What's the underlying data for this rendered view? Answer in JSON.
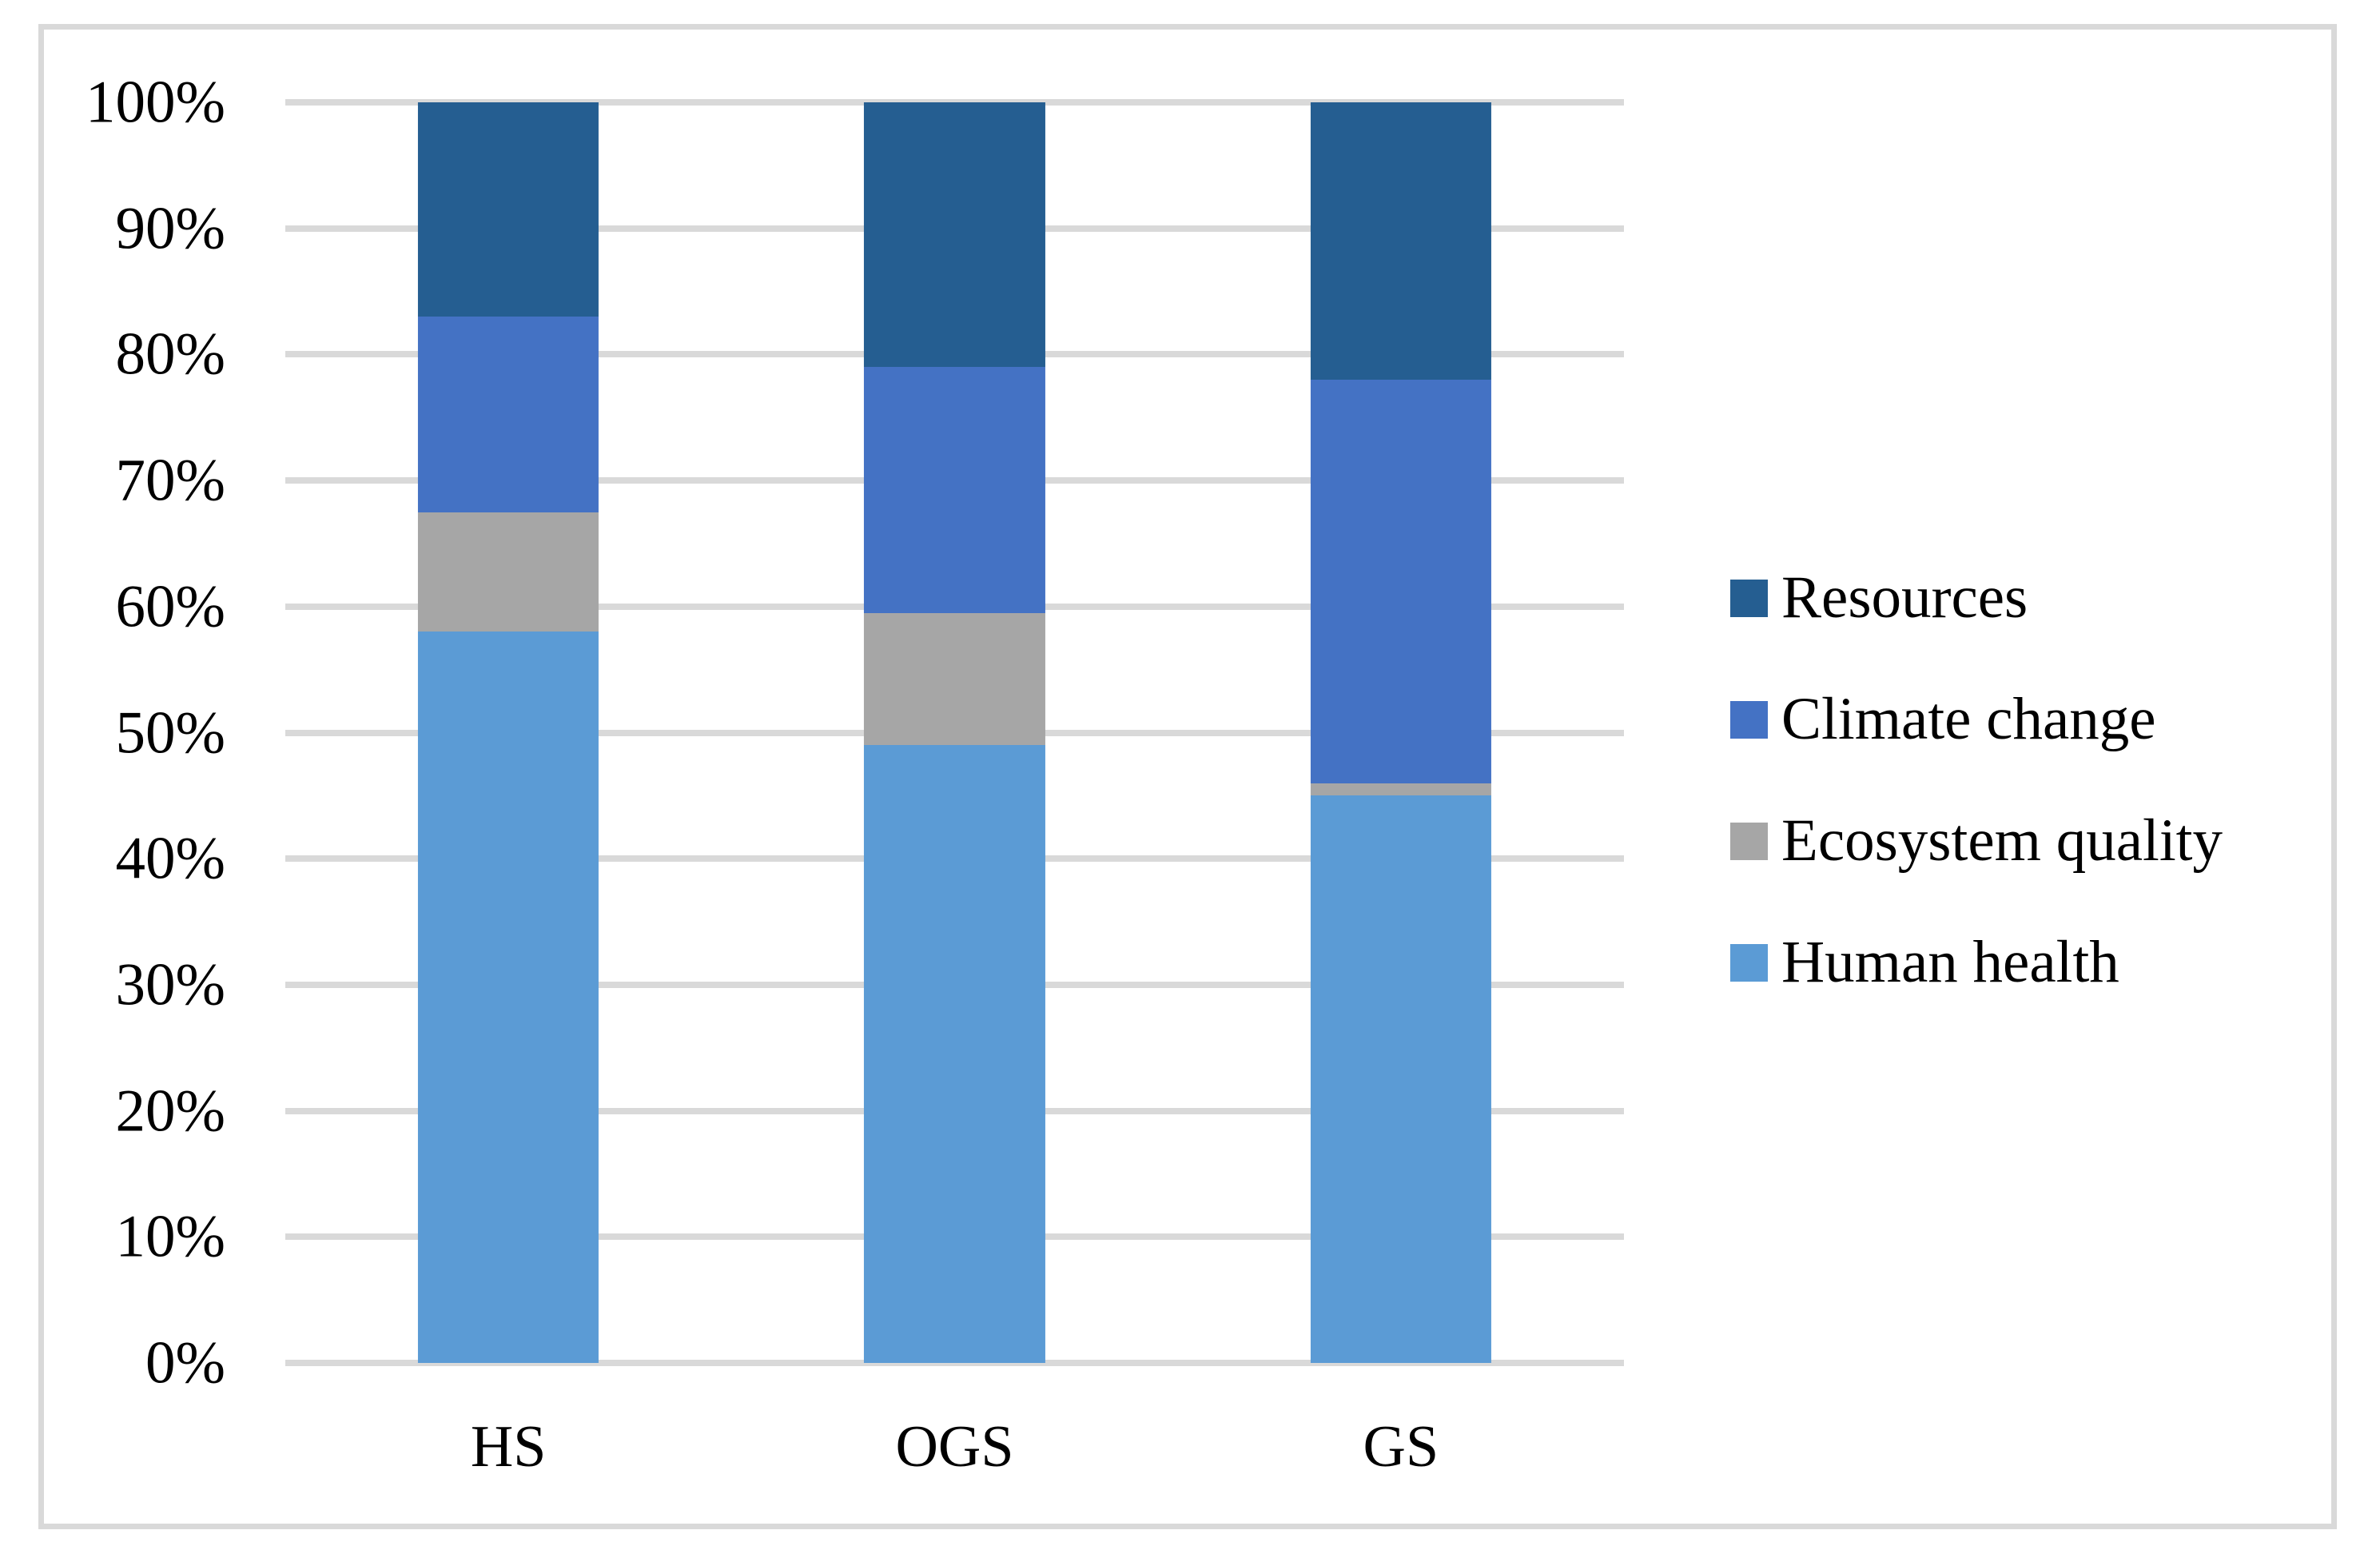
{
  "chart_data": {
    "type": "bar",
    "subtype": "stacked-100-percent",
    "title": "",
    "categories": [
      "HS",
      "OGS",
      "GS"
    ],
    "series": [
      {
        "name": "Human health",
        "color": "#5B9BD5",
        "values": [
          58,
          49,
          45
        ]
      },
      {
        "name": "Ecosystem quality",
        "color": "#A6A6A6",
        "values": [
          9.5,
          10.5,
          1
        ]
      },
      {
        "name": "Climate change",
        "color": "#4472C4",
        "values": [
          15.5,
          19.5,
          32
        ]
      },
      {
        "name": "Resources",
        "color": "#255E91",
        "values": [
          17,
          21,
          22
        ]
      }
    ],
    "y_axis": {
      "min": 0,
      "max": 100,
      "step": 10,
      "tick_labels": [
        "0%",
        "10%",
        "20%",
        "30%",
        "40%",
        "50%",
        "60%",
        "70%",
        "80%",
        "90%",
        "100%"
      ],
      "gridlines": true,
      "gridline_color": "#D9D9D9"
    },
    "x_axis": {
      "tick_labels": [
        "HS",
        "OGS",
        "GS"
      ]
    },
    "legend": {
      "position": "right",
      "entries": [
        "Resources",
        "Climate change",
        "Ecosystem quality",
        "Human health"
      ]
    },
    "frame_border_color": "#D9D9D9",
    "background": "#FFFFFF"
  }
}
